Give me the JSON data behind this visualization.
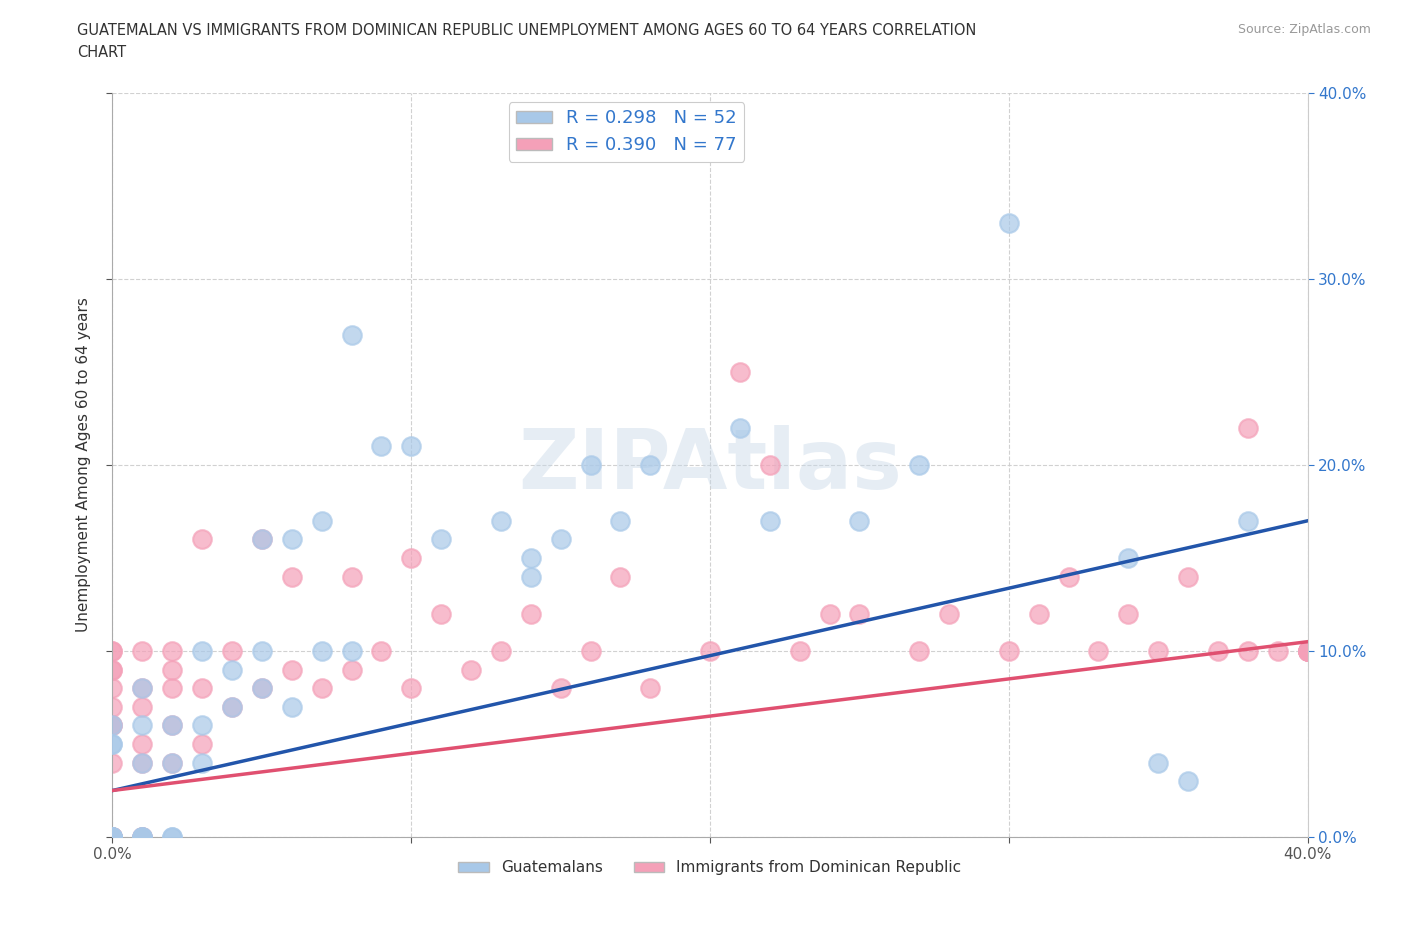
{
  "title_line1": "GUATEMALAN VS IMMIGRANTS FROM DOMINICAN REPUBLIC UNEMPLOYMENT AMONG AGES 60 TO 64 YEARS CORRELATION",
  "title_line2": "CHART",
  "source": "Source: ZipAtlas.com",
  "ylabel": "Unemployment Among Ages 60 to 64 years",
  "xlim": [
    0.0,
    0.4
  ],
  "ylim": [
    0.0,
    0.4
  ],
  "legend_label1": "R = 0.298   N = 52",
  "legend_label2": "R = 0.390   N = 77",
  "color_blue": "#A8C8E8",
  "color_pink": "#F4A0B8",
  "line_color_blue": "#2255AA",
  "line_color_pink": "#E05070",
  "right_axis_color": "#3377CC",
  "watermark_text": "ZIPAtlas",
  "series1_x": [
    0.0,
    0.0,
    0.0,
    0.0,
    0.0,
    0.0,
    0.0,
    0.0,
    0.0,
    0.01,
    0.01,
    0.01,
    0.01,
    0.01,
    0.01,
    0.02,
    0.02,
    0.02,
    0.02,
    0.03,
    0.03,
    0.03,
    0.04,
    0.04,
    0.05,
    0.05,
    0.05,
    0.06,
    0.06,
    0.07,
    0.07,
    0.08,
    0.08,
    0.09,
    0.1,
    0.11,
    0.13,
    0.14,
    0.14,
    0.15,
    0.16,
    0.17,
    0.18,
    0.21,
    0.22,
    0.25,
    0.27,
    0.3,
    0.34,
    0.35,
    0.36,
    0.38
  ],
  "series1_y": [
    0.0,
    0.0,
    0.0,
    0.0,
    0.0,
    0.0,
    0.05,
    0.05,
    0.06,
    0.0,
    0.0,
    0.0,
    0.04,
    0.06,
    0.08,
    0.0,
    0.0,
    0.04,
    0.06,
    0.04,
    0.06,
    0.1,
    0.07,
    0.09,
    0.08,
    0.1,
    0.16,
    0.07,
    0.16,
    0.1,
    0.17,
    0.1,
    0.27,
    0.21,
    0.21,
    0.16,
    0.17,
    0.14,
    0.15,
    0.16,
    0.2,
    0.17,
    0.2,
    0.22,
    0.17,
    0.17,
    0.2,
    0.33,
    0.15,
    0.04,
    0.03,
    0.17
  ],
  "series2_x": [
    0.0,
    0.0,
    0.0,
    0.0,
    0.0,
    0.0,
    0.0,
    0.0,
    0.0,
    0.0,
    0.0,
    0.0,
    0.0,
    0.0,
    0.0,
    0.0,
    0.01,
    0.01,
    0.01,
    0.01,
    0.01,
    0.01,
    0.01,
    0.02,
    0.02,
    0.02,
    0.02,
    0.02,
    0.03,
    0.03,
    0.03,
    0.04,
    0.04,
    0.05,
    0.05,
    0.06,
    0.06,
    0.07,
    0.08,
    0.08,
    0.09,
    0.1,
    0.1,
    0.11,
    0.12,
    0.13,
    0.14,
    0.15,
    0.16,
    0.17,
    0.18,
    0.2,
    0.21,
    0.22,
    0.23,
    0.24,
    0.25,
    0.27,
    0.28,
    0.3,
    0.31,
    0.32,
    0.33,
    0.34,
    0.35,
    0.36,
    0.37,
    0.38,
    0.38,
    0.39,
    0.4,
    0.4,
    0.4,
    0.4,
    0.4,
    0.4,
    0.4
  ],
  "series2_y": [
    0.0,
    0.0,
    0.0,
    0.0,
    0.0,
    0.0,
    0.0,
    0.04,
    0.06,
    0.06,
    0.07,
    0.08,
    0.09,
    0.09,
    0.1,
    0.1,
    0.0,
    0.0,
    0.04,
    0.05,
    0.07,
    0.08,
    0.1,
    0.04,
    0.06,
    0.08,
    0.09,
    0.1,
    0.05,
    0.08,
    0.16,
    0.07,
    0.1,
    0.08,
    0.16,
    0.09,
    0.14,
    0.08,
    0.09,
    0.14,
    0.1,
    0.08,
    0.15,
    0.12,
    0.09,
    0.1,
    0.12,
    0.08,
    0.1,
    0.14,
    0.08,
    0.1,
    0.25,
    0.2,
    0.1,
    0.12,
    0.12,
    0.1,
    0.12,
    0.1,
    0.12,
    0.14,
    0.1,
    0.12,
    0.1,
    0.14,
    0.1,
    0.22,
    0.1,
    0.1,
    0.1,
    0.1,
    0.1,
    0.1,
    0.1,
    0.1,
    0.1
  ],
  "trend1_x": [
    0.0,
    0.4
  ],
  "trend1_y": [
    0.025,
    0.17
  ],
  "trend2_x": [
    0.0,
    0.4
  ],
  "trend2_y": [
    0.025,
    0.105
  ],
  "bottom_legend": [
    "Guatemalans",
    "Immigrants from Dominican Republic"
  ]
}
